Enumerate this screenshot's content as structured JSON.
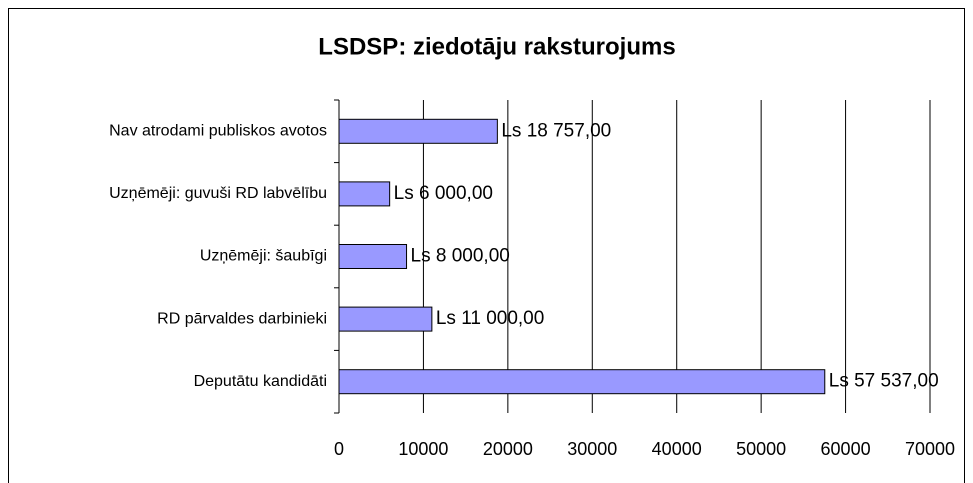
{
  "chart_data": {
    "type": "barh",
    "title": "LSDSP: ziedotāju raksturojums",
    "categories": [
      "Nav atrodami publiskos avotos",
      "Uzņēmēji: guvuši RD labvēlību",
      "Uzņēmēji: šaubīgi",
      "RD pārvaldes darbinieki",
      "Deputātu kandidāti"
    ],
    "values": [
      18757,
      6000,
      8000,
      11000,
      57537
    ],
    "value_labels": [
      "Ls 18 757,00",
      "Ls 6 000,00",
      "Ls 8 000,00",
      "Ls 11 000,00",
      "Ls 57 537,00"
    ],
    "color": "#9999ff",
    "xlim": [
      0,
      70000
    ],
    "xticks": [
      0,
      10000,
      20000,
      30000,
      40000,
      50000,
      60000,
      70000
    ],
    "grid": true
  }
}
